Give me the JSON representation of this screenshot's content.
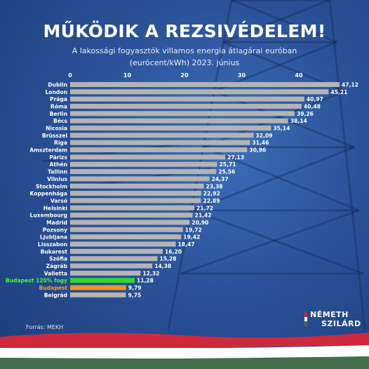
{
  "title": "MŰKÖDIK A REZSIVÉDELEM!",
  "subtitle_line1": "A lakossági fogyasztók villamos energia átlagárai euróban",
  "subtitle_line2": "(eurócent/kWh) 2023. június",
  "source": "Forrás: MEKH",
  "brand": {
    "line1": "NÉMETH",
    "line2": "SZILÁRD"
  },
  "colors": {
    "bar_default": "#b4b4b4",
    "bar_highlight_green": "#2fd82f",
    "bar_highlight_orange": "#f0922b",
    "label_green": "#3cff3c",
    "label_orange": "#ff9a2a",
    "flag_red": "#cd2a3e",
    "flag_white": "#ffffff",
    "flag_green": "#436f4d"
  },
  "chart_data": {
    "type": "bar",
    "orientation": "horizontal",
    "xlim": [
      0,
      47.12
    ],
    "xticks": [
      "0",
      "10",
      "20",
      "30",
      "40"
    ],
    "categories": [
      "Dublin",
      "London",
      "Prága",
      "Róma",
      "Berlin",
      "Bécs",
      "Nicosia",
      "Brüsszel",
      "Riga",
      "Amszterdam",
      "Párizs",
      "Athén",
      "Tallinn",
      "Vilnius",
      "Stockholm",
      "Koppenhága",
      "Varsó",
      "Helsinki",
      "Luxembourg",
      "Madrid",
      "Pozsony",
      "Ljubljana",
      "Lisszabon",
      "Bukarest",
      "Szófia",
      "Zágráb",
      "Valletta",
      "Budapest 120% fogy",
      "Budapest",
      "Belgrád"
    ],
    "values": [
      47.12,
      45.21,
      40.97,
      40.48,
      39.26,
      38.14,
      35.14,
      32.09,
      31.46,
      30.96,
      27.13,
      25.71,
      25.56,
      24.37,
      23.38,
      22.92,
      22.89,
      21.72,
      21.42,
      20.9,
      19.72,
      19.42,
      18.47,
      16.2,
      15.28,
      14.38,
      12.32,
      11.28,
      9.79,
      9.75
    ],
    "value_labels": [
      "47,12",
      "45,21",
      "40,97",
      "40,48",
      "39,26",
      "38,14",
      "35,14",
      "32,09",
      "31,46",
      "30,96",
      "27,13",
      "25,71",
      "25,56",
      "24,37",
      "23,38",
      "22,92",
      "22,89",
      "21,72",
      "21,42",
      "20,90",
      "19,72",
      "19,42",
      "18,47",
      "16,20",
      "15,28",
      "14,38",
      "12,32",
      "11,28",
      "9,79",
      "9,75"
    ],
    "highlight": {
      "Budapest 120% fogy": "green",
      "Budapest": "orange"
    }
  }
}
